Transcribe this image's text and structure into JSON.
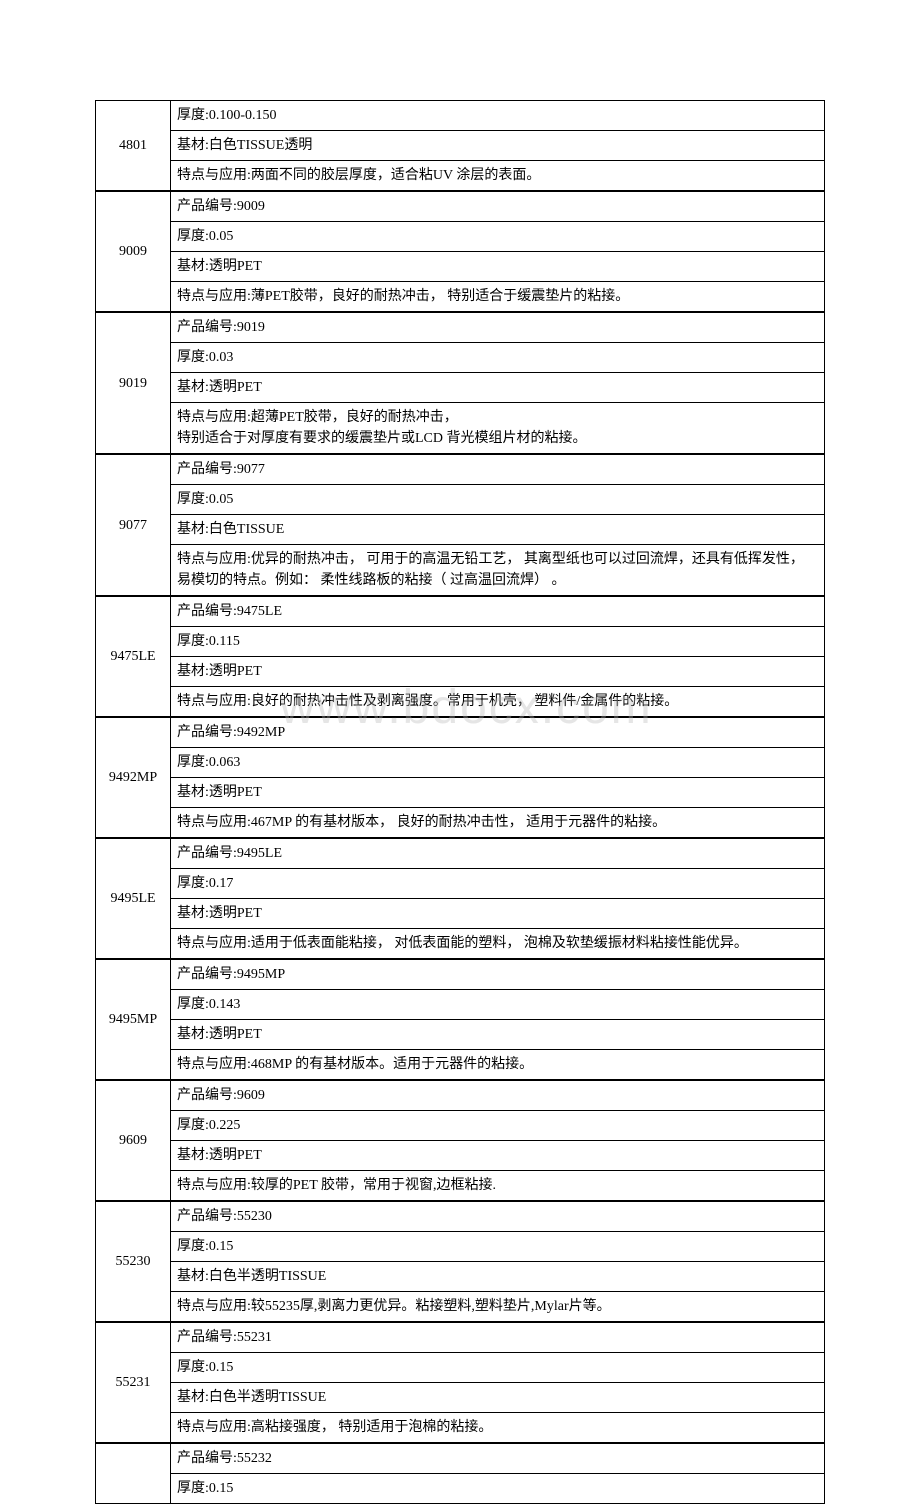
{
  "watermark": "www.bdocx.com",
  "groups": [
    {
      "id": "4801",
      "rows": [
        "厚度:0.100-0.150",
        "基材:白色TISSUE透明",
        "特点与应用:两面不同的胶层厚度，适合粘UV 涂层的表面。"
      ]
    },
    {
      "id": "9009",
      "rows": [
        "产品编号:9009",
        "厚度:0.05",
        "基材:透明PET",
        "特点与应用:薄PET胶带，良好的耐热冲击，  特别适合于缓震垫片的粘接。"
      ]
    },
    {
      "id": "9019",
      "rows": [
        "产品编号:9019",
        "厚度:0.03",
        "基材:透明PET",
        "特点与应用:超薄PET胶带，良好的耐热冲击，\n特别适合于对厚度有要求的缓震垫片或LCD 背光模组片材的粘接。"
      ]
    },
    {
      "id": "9077",
      "rows": [
        "产品编号:9077",
        "厚度:0.05",
        "基材:白色TISSUE",
        "特点与应用:优异的耐热冲击，  可用于的高温无铅工艺，  其离型纸也可以过回流焊，还具有低挥发性，  易模切的特点。例如：  柔性线路板的粘接（ 过高温回流焊）  。"
      ]
    },
    {
      "id": "9475LE",
      "rows": [
        "产品编号:9475LE",
        "厚度:0.115",
        "基材:透明PET",
        "特点与应用:良好的耐热冲击性及剥离强度。常用于机壳，  塑料件/金属件的粘接。"
      ]
    },
    {
      "id": "9492MP",
      "rows": [
        "产品编号:9492MP",
        "厚度:0.063",
        "基材:透明PET",
        "特点与应用:467MP 的有基材版本，  良好的耐热冲击性，  适用于元器件的粘接。"
      ]
    },
    {
      "id": "9495LE",
      "rows": [
        "产品编号:9495LE",
        "厚度:0.17",
        "基材:透明PET",
        "特点与应用:适用于低表面能粘接，  对低表面能的塑料，  泡棉及软垫缓振材料粘接性能优异。"
      ]
    },
    {
      "id": "9495MP",
      "rows": [
        "产品编号:9495MP",
        "厚度:0.143",
        "基材:透明PET",
        "特点与应用:468MP 的有基材版本。适用于元器件的粘接。"
      ]
    },
    {
      "id": "9609",
      "rows": [
        "产品编号:9609",
        "厚度:0.225",
        "基材:透明PET",
        "特点与应用:较厚的PET 胶带，常用于视窗,边框粘接."
      ]
    },
    {
      "id": "55230",
      "rows": [
        "产品编号:55230",
        "厚度:0.15",
        "基材:白色半透明TISSUE",
        "特点与应用:较55235厚,剥离力更优异。粘接塑料,塑料垫片,Mylar片等。"
      ]
    },
    {
      "id": "55231",
      "rows": [
        "产品编号:55231",
        "厚度:0.15",
        "基材:白色半透明TISSUE",
        "特点与应用:高粘接强度，  特别适用于泡棉的粘接。"
      ]
    },
    {
      "id": "",
      "rows": [
        "产品编号:55232",
        "厚度:0.15"
      ]
    }
  ]
}
